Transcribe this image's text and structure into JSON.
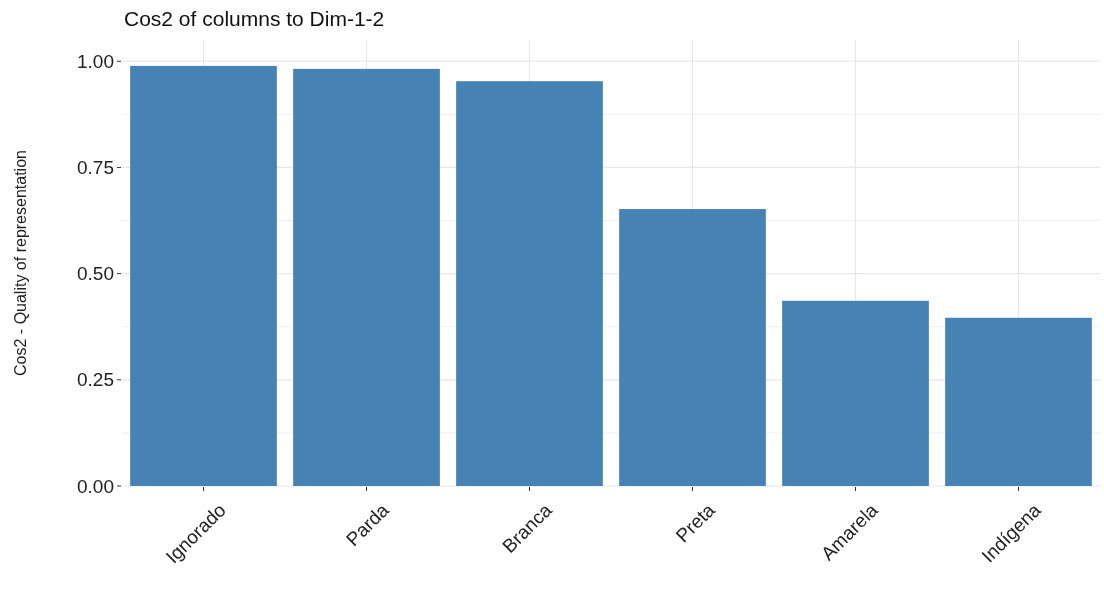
{
  "chart_data": {
    "type": "bar",
    "title": "Cos2 of columns to Dim-1-2",
    "ylabel": "Cos2 - Quality of representation",
    "categories": [
      "Ignorado",
      "Parda",
      "Branca",
      "Preta",
      "Amarela",
      "Indígena"
    ],
    "values": [
      0.989,
      0.982,
      0.953,
      0.652,
      0.436,
      0.396
    ],
    "color": "#4682b4",
    "ylim": [
      0,
      1.05
    ],
    "yticks": [
      {
        "value": 0,
        "label": "0.00"
      },
      {
        "value": 0.25,
        "label": "0.25"
      },
      {
        "value": 0.5,
        "label": "0.50"
      },
      {
        "value": 0.75,
        "label": "0.75"
      },
      {
        "value": 1,
        "label": "1.00"
      }
    ],
    "grid": true
  }
}
